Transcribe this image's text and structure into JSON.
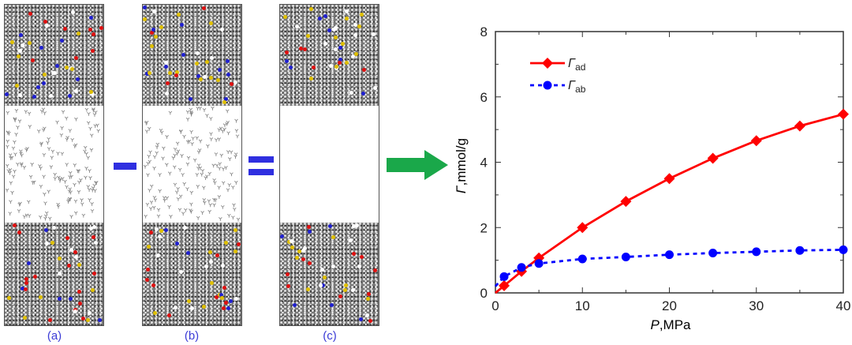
{
  "panels": [
    {
      "label": "(a)",
      "gas_molecules": true
    },
    {
      "label": "(b)",
      "gas_molecules": true
    },
    {
      "label": "(c)",
      "gas_molecules": false
    }
  ],
  "operators": {
    "minus": "-",
    "equals": "=",
    "arrow_color": "#1aa84a",
    "operator_color": "#2f2fe0"
  },
  "chart_data": {
    "type": "line",
    "xlabel_italic": "P",
    "xlabel_rest": ",MPa",
    "ylabel_italic": "Γ",
    "ylabel_rest": ",mmol/g",
    "xlim": [
      0,
      40
    ],
    "ylim": [
      0,
      8
    ],
    "xticks": [
      0,
      10,
      20,
      30,
      40
    ],
    "yticks": [
      0,
      2,
      4,
      6,
      8
    ],
    "grid": false,
    "legend_position": "top-left",
    "series": [
      {
        "name": "Γ",
        "subscript": "ad",
        "color": "#ff0000",
        "marker": "diamond",
        "line": "solid",
        "x": [
          0,
          1,
          3,
          5,
          10,
          15,
          20,
          25,
          30,
          35,
          40
        ],
        "y": [
          0,
          0.22,
          0.66,
          1.07,
          2.0,
          2.8,
          3.5,
          4.12,
          4.66,
          5.11,
          5.47
        ]
      },
      {
        "name": "Γ",
        "subscript": "ab",
        "color": "#0000ff",
        "marker": "circle",
        "line": "dotted",
        "x": [
          0,
          1,
          3,
          5,
          10,
          15,
          20,
          25,
          30,
          35,
          40
        ],
        "y": [
          0.2,
          0.5,
          0.78,
          0.9,
          1.04,
          1.1,
          1.17,
          1.22,
          1.26,
          1.3,
          1.32
        ]
      }
    ]
  }
}
